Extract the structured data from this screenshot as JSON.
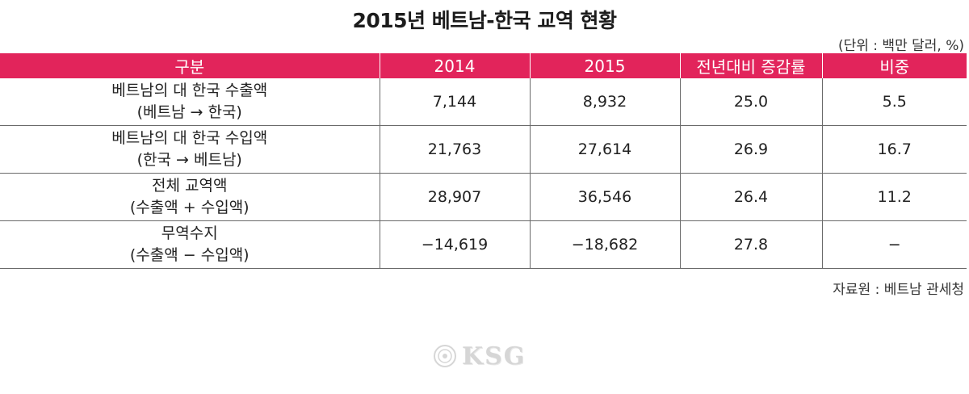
{
  "title": "2015년 베트남-한국 교역 현황",
  "unit_note": "(단위 : 백만 달러, %)",
  "table": {
    "headers": [
      "구분",
      "2014",
      "2015",
      "전년대비 증감률",
      "비중"
    ],
    "rows": [
      {
        "category_line1": "베트남의 대 한국 수출액",
        "category_line2": "(베트남 → 한국)",
        "v2014": "7,144",
        "v2015": "8,932",
        "change": "25.0",
        "share": "5.5"
      },
      {
        "category_line1": "베트남의 대 한국 수입액",
        "category_line2": "(한국 → 베트남)",
        "v2014": "21,763",
        "v2015": "27,614",
        "change": "26.9",
        "share": "16.7"
      },
      {
        "category_line1": "전체 교역액",
        "category_line2": "(수출액 + 수입액)",
        "v2014": "28,907",
        "v2015": "36,546",
        "change": "26.4",
        "share": "11.2"
      },
      {
        "category_line1": "무역수지",
        "category_line2": "(수출액 − 수입액)",
        "v2014": "−14,619",
        "v2015": "−18,682",
        "change": "27.8",
        "share": "−"
      }
    ]
  },
  "source": "자료원 : 베트남 관세청",
  "watermark": {
    "text": "KSG",
    "icon": "seal-icon"
  },
  "colors": {
    "header_bg": "#e2245b",
    "header_text": "#ffffff",
    "grid": "#6a6a6a"
  }
}
